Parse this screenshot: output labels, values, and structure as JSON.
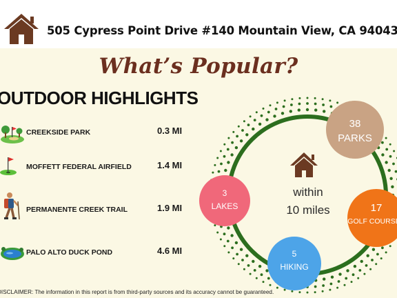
{
  "header": {
    "home_icon": "home-icon",
    "address": "505 Cypress Point Drive #140 Mountain View, CA 94043"
  },
  "title": "What’s Popular?",
  "section_title": "OUTDOOR HIGHLIGHTS",
  "highlights": [
    {
      "icon": "golf-course-icon",
      "name": "CREEKSIDE PARK",
      "distance": "0.3 MI"
    },
    {
      "icon": "golf-flag-icon",
      "name": "MOFFETT FEDERAL AIRFIELD",
      "distance": "1.4 MI"
    },
    {
      "icon": "hiker-icon",
      "name": "PERMANENTE CREEK TRAIL",
      "distance": "1.9 MI"
    },
    {
      "icon": "pond-icon",
      "name": "PALO ALTO DUCK POND",
      "distance": "4.6 MI"
    }
  ],
  "summary": {
    "center_line1": "within",
    "center_line2": "10 miles",
    "bubbles": [
      {
        "count": "38",
        "label": "PARKS",
        "color": "#c9a384"
      },
      {
        "count": "17",
        "label": "GOLF COURSES",
        "color": "#f07418"
      },
      {
        "count": "5",
        "label": "HIKING",
        "color": "#4da4e8"
      },
      {
        "count": "3",
        "label": "LAKES",
        "color": "#f0687a"
      }
    ],
    "ring_color": "#2c6e1e"
  },
  "disclaimer": "DISCLAIMER: The information in this report is from third-party sources and its accuracy cannot be guaranteed."
}
